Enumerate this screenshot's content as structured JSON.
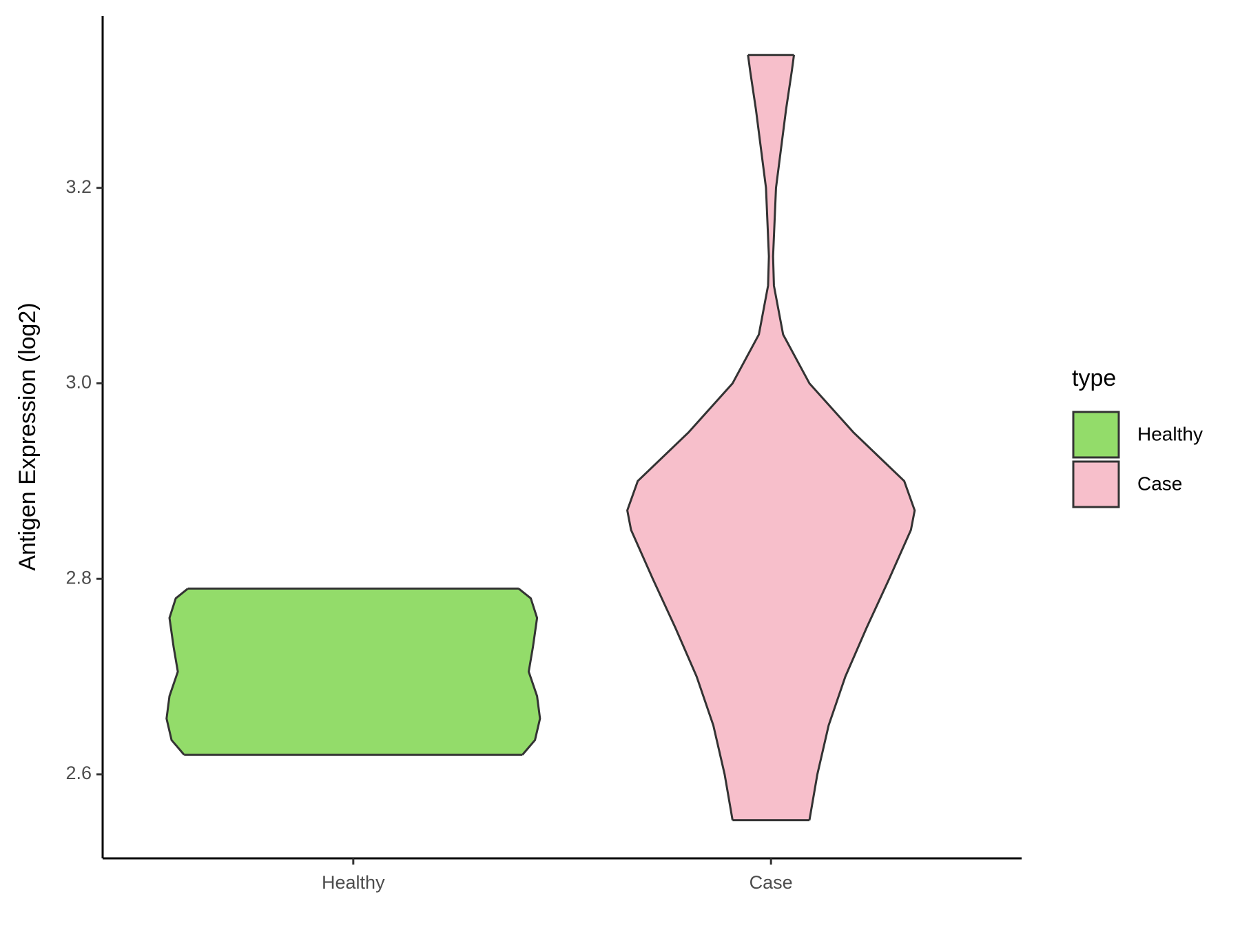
{
  "chart_data": {
    "type": "violin",
    "y_label": "Antigen Expression (log2)",
    "categories": [
      "Healthy",
      "Case"
    ],
    "legend_title": "type",
    "series": [
      {
        "name": "Healthy",
        "color": "#93dc6a",
        "y": [
          2.62,
          2.635,
          2.657,
          2.68,
          2.705,
          2.73,
          2.76,
          2.78,
          2.79
        ],
        "width": [
          0.405,
          0.435,
          0.447,
          0.44,
          0.42,
          0.43,
          0.44,
          0.425,
          0.396
        ]
      },
      {
        "name": "Case",
        "color": "#f7bfcb",
        "y": [
          2.553,
          2.6,
          2.65,
          2.7,
          2.75,
          2.8,
          2.85,
          2.87,
          2.9,
          2.95,
          3.0,
          3.05,
          3.1,
          3.13,
          3.2,
          3.28,
          3.32,
          3.336
        ],
        "width": [
          0.092,
          0.111,
          0.138,
          0.178,
          0.229,
          0.283,
          0.335,
          0.344,
          0.319,
          0.197,
          0.092,
          0.029,
          0.007,
          0.005,
          0.012,
          0.036,
          0.05,
          0.055
        ]
      }
    ],
    "ylim": [
      2.514,
      3.376
    ],
    "yticks": [
      2.6,
      2.8,
      {
        "value": 3,
        "label": "3.0"
      },
      3.2
    ]
  }
}
